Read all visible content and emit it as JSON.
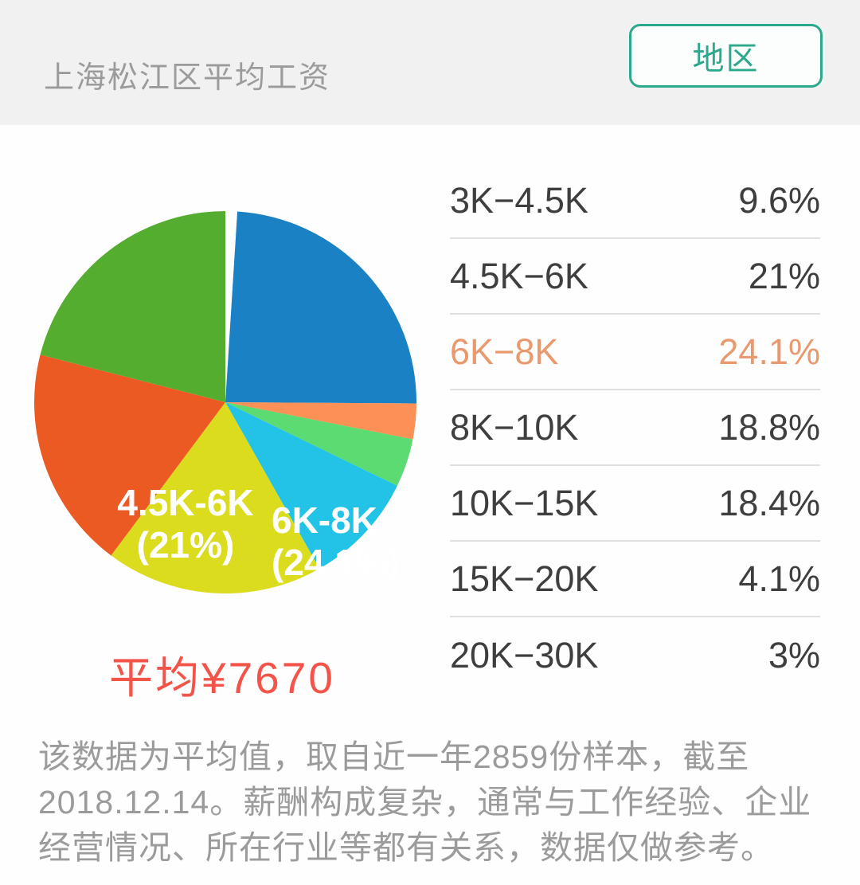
{
  "header": {
    "title": "上海松江区平均工资",
    "region_button_label": "地区"
  },
  "colors": {
    "header_bg": "#f1f1f2",
    "teal": "#2ba98c",
    "text_dark": "#3e3e3e",
    "text_gray": "#9b9b9b",
    "divider": "#e0e0e0",
    "highlight": "#e8996e",
    "avg_red": "#f3544a"
  },
  "chart_data": {
    "type": "pie",
    "title": "上海松江区平均工资",
    "unit": "percent",
    "start_angle_deg": 3.6,
    "top_gap_percent": 1,
    "categories": [
      "3K-4.5K",
      "4.5K-6K",
      "6K-8K",
      "8K-10K",
      "10K-15K",
      "15K-20K",
      "20K-30K"
    ],
    "values": [
      9.6,
      21,
      24.1,
      18.8,
      18.4,
      4.1,
      3
    ],
    "highlighted_category": "6K-8K",
    "slices": [
      {
        "range": "6K-8K",
        "pct": 24.1,
        "color": "#1a82c4"
      },
      {
        "range": "20K-30K",
        "pct": 3,
        "color": "#fb9157"
      },
      {
        "range": "15K-20K",
        "pct": 4.1,
        "color": "#5bdb72"
      },
      {
        "range": "3K-4.5K",
        "pct": 9.6,
        "color": "#22c3e6"
      },
      {
        "range": "10K-15K",
        "pct": 18.4,
        "color": "#dcdc1e"
      },
      {
        "range": "8K-10K",
        "pct": 18.8,
        "color": "#ec5a24"
      },
      {
        "range": "4.5K-6K",
        "pct": 21,
        "color": "#54ad2f"
      }
    ],
    "labels": [
      {
        "line1": "4.5K-6K",
        "line2": "(21%)"
      },
      {
        "line1": "6K-8K",
        "line2": "(24.1%)"
      }
    ],
    "average_label": "平均¥7670"
  },
  "table": {
    "rows": [
      {
        "range": "3K−4.5K",
        "pct": "9.6%",
        "highlight": false
      },
      {
        "range": "4.5K−6K",
        "pct": "21%",
        "highlight": false
      },
      {
        "range": "6K−8K",
        "pct": "24.1%",
        "highlight": true
      },
      {
        "range": "8K−10K",
        "pct": "18.8%",
        "highlight": false
      },
      {
        "range": "10K−15K",
        "pct": "18.4%",
        "highlight": false
      },
      {
        "range": "15K−20K",
        "pct": "4.1%",
        "highlight": false
      },
      {
        "range": "20K−30K",
        "pct": "3%",
        "highlight": false
      }
    ]
  },
  "footnote": {
    "lines": [
      "该数据为平均值，取自近一年2859份样本，截至",
      "2018.12.14。薪酬构成复杂，通常与工作经验、企业",
      "经营情况、所在行业等都有关系，数据仅做参考。"
    ]
  }
}
